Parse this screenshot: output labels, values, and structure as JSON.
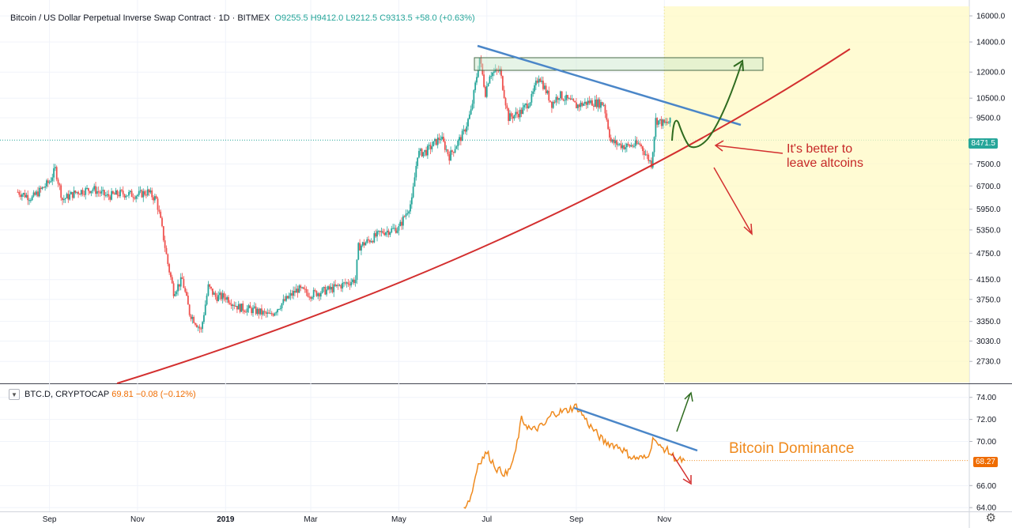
{
  "header": {
    "symbol": "Bitcoin / US Dollar Perpetual Inverse Swap Contract · 1D · BITMEX",
    "open": "O9255.5",
    "high": "H9412.0",
    "low": "L9212.5",
    "close": "C9313.5",
    "change": "+58.0 (+0.63%)"
  },
  "indicator": {
    "name": "BTC.D, CRYPTOCAP",
    "value": "69.81",
    "change": "−0.08 (−0.12%)"
  },
  "annotations": {
    "altcoins_line1": "It's better to",
    "altcoins_line2": "leave altcoins",
    "dominance": "Bitcoin Dominance"
  },
  "price_labels": {
    "main": "8471.5",
    "dominance": "68.27"
  },
  "colors": {
    "up": "#26a69a",
    "down": "#ef5350",
    "trend_blue": "#4a86c8",
    "trend_red": "#d32f2f",
    "projection_green": "#2e6b1f",
    "dominance_line": "#ef8a1e",
    "projection_zone": "#fff9c4"
  },
  "chart_data": [
    {
      "type": "candlestick",
      "title": "Bitcoin / US Dollar Perpetual Inverse Swap Contract · 1D · BITMEX",
      "x_ticks": [
        "Sep",
        "Nov",
        "2019",
        "Mar",
        "May",
        "Jul",
        "Sep",
        "Nov"
      ],
      "y_ticks": [
        16000.0,
        14000.0,
        12000.0,
        10500.0,
        9500.0,
        7500.0,
        6700.0,
        5950.0,
        5350.0,
        4750.0,
        4150.0,
        3750.0,
        3350.0,
        3030.0,
        2730.0
      ],
      "ylim": [
        2450,
        16800
      ],
      "scale": "log",
      "last_price": 8471.5,
      "series": [
        {
          "values": [
            [
              "2018-08-10",
              6500
            ],
            [
              "2018-08-20",
              6300
            ],
            [
              "2018-09-01",
              6850
            ],
            [
              "2018-09-05",
              7300
            ],
            [
              "2018-09-10",
              6250
            ],
            [
              "2018-09-20",
              6500
            ],
            [
              "2018-10-01",
              6600
            ],
            [
              "2018-10-11",
              6350
            ],
            [
              "2018-10-20",
              6450
            ],
            [
              "2018-11-01",
              6400
            ],
            [
              "2018-11-08",
              6500
            ],
            [
              "2018-11-14",
              6250
            ],
            [
              "2018-11-17",
              5600
            ],
            [
              "2018-11-22",
              4500
            ],
            [
              "2018-11-26",
              3900
            ],
            [
              "2018-12-02",
              4150
            ],
            [
              "2018-12-07",
              3500
            ],
            [
              "2018-12-15",
              3200
            ],
            [
              "2018-12-20",
              4000
            ],
            [
              "2018-12-25",
              3800
            ],
            [
              "2019-01-01",
              3800
            ],
            [
              "2019-01-10",
              3600
            ],
            [
              "2019-01-20",
              3550
            ],
            [
              "2019-02-01",
              3450
            ],
            [
              "2019-02-08",
              3650
            ],
            [
              "2019-02-20",
              3950
            ],
            [
              "2019-03-01",
              3850
            ],
            [
              "2019-03-15",
              3950
            ],
            [
              "2019-04-01",
              4150
            ],
            [
              "2019-04-03",
              4900
            ],
            [
              "2019-04-20",
              5300
            ],
            [
              "2019-05-01",
              5400
            ],
            [
              "2019-05-10",
              6200
            ],
            [
              "2019-05-14",
              7900
            ],
            [
              "2019-05-20",
              8000
            ],
            [
              "2019-05-30",
              8600
            ],
            [
              "2019-06-05",
              7800
            ],
            [
              "2019-06-15",
              8800
            ],
            [
              "2019-06-20",
              9800
            ],
            [
              "2019-06-26",
              12900
            ],
            [
              "2019-06-30",
              10800
            ],
            [
              "2019-07-03",
              11900
            ],
            [
              "2019-07-10",
              12100
            ],
            [
              "2019-07-16",
              9500
            ],
            [
              "2019-07-25",
              9800
            ],
            [
              "2019-08-01",
              10500
            ],
            [
              "2019-08-06",
              11800
            ],
            [
              "2019-08-15",
              10200
            ],
            [
              "2019-08-20",
              10700
            ],
            [
              "2019-09-01",
              10100
            ],
            [
              "2019-09-10",
              10300
            ],
            [
              "2019-09-20",
              10200
            ],
            [
              "2019-09-25",
              8400
            ],
            [
              "2019-10-05",
              8200
            ],
            [
              "2019-10-15",
              8300
            ],
            [
              "2019-10-23",
              7500
            ],
            [
              "2019-10-26",
              9400
            ],
            [
              "2019-11-01",
              9200
            ],
            [
              "2019-11-05",
              9300
            ]
          ]
        }
      ]
    },
    {
      "type": "line",
      "title": "BTC.D, CRYPTOCAP",
      "y_ticks": [
        74.0,
        72.0,
        70.0,
        66.0,
        64.0
      ],
      "ylim": [
        63.8,
        75.2
      ],
      "last_value": 68.27,
      "series": [
        {
          "values": [
            [
              "2019-06-15",
              64.0
            ],
            [
              "2019-06-20",
              65.0
            ],
            [
              "2019-06-25",
              68.0
            ],
            [
              "2019-07-01",
              69.0
            ],
            [
              "2019-07-08",
              67.5
            ],
            [
              "2019-07-15",
              67.0
            ],
            [
              "2019-07-20",
              68.5
            ],
            [
              "2019-07-25",
              72.0
            ],
            [
              "2019-08-01",
              71.0
            ],
            [
              "2019-08-10",
              71.5
            ],
            [
              "2019-08-15",
              72.5
            ],
            [
              "2019-08-25",
              72.8
            ],
            [
              "2019-09-01",
              73.2
            ],
            [
              "2019-09-05",
              72.5
            ],
            [
              "2019-09-10",
              71.5
            ],
            [
              "2019-09-20",
              70.0
            ],
            [
              "2019-10-01",
              69.5
            ],
            [
              "2019-10-10",
              68.5
            ],
            [
              "2019-10-20",
              68.5
            ],
            [
              "2019-10-25",
              70.5
            ],
            [
              "2019-10-28",
              69.5
            ],
            [
              "2019-11-02",
              69.3
            ],
            [
              "2019-11-06",
              68.8
            ],
            [
              "2019-11-10",
              68.3
            ],
            [
              "2019-11-15",
              68.27
            ]
          ]
        }
      ]
    }
  ]
}
